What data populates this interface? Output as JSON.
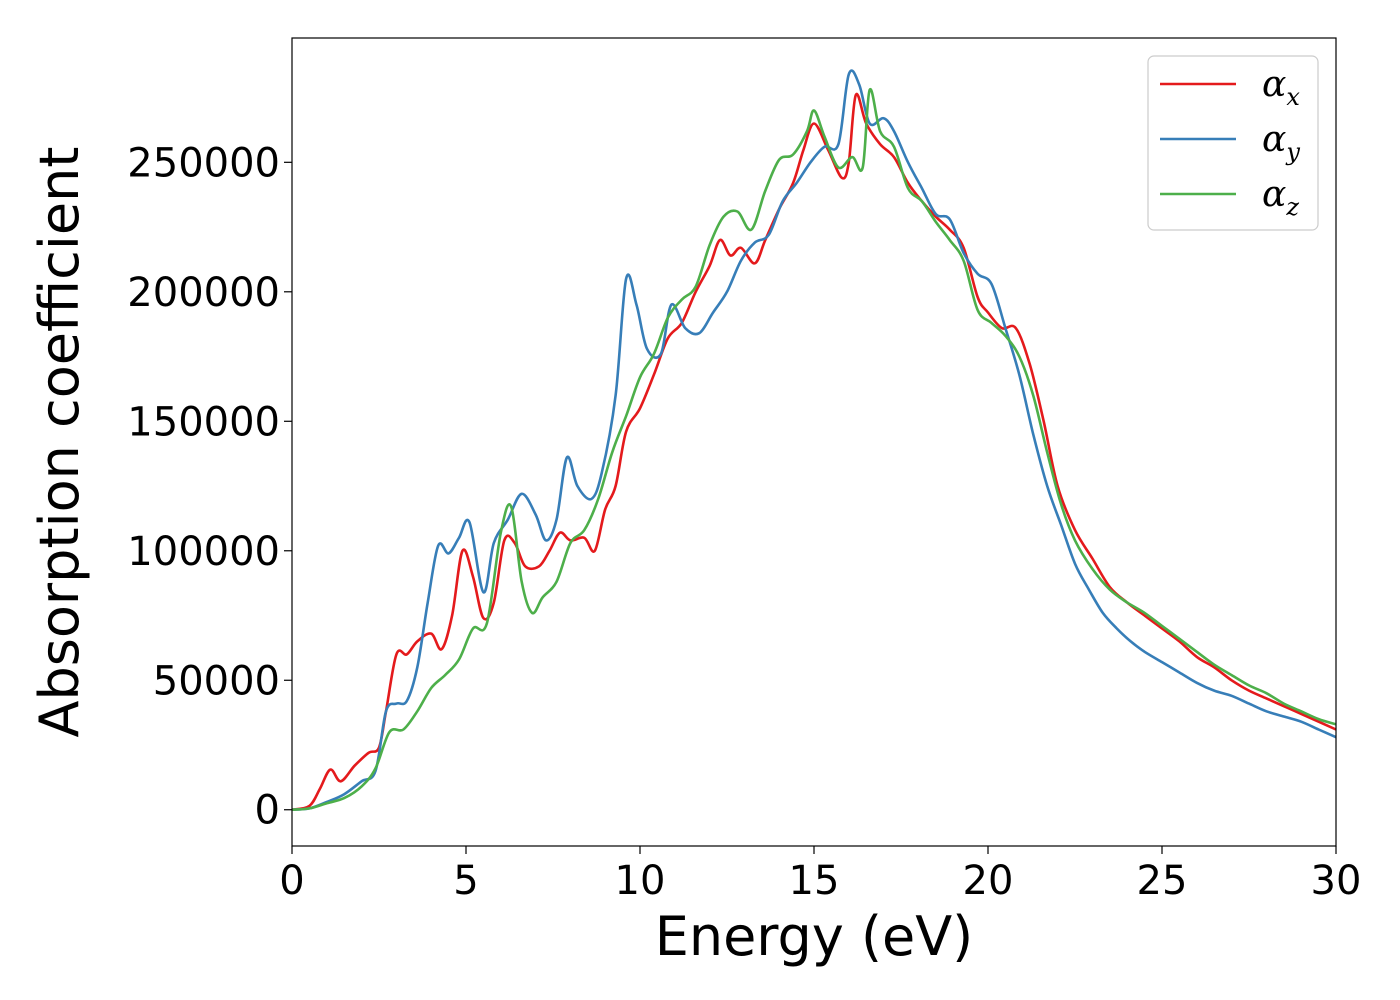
{
  "chart_data": {
    "type": "line",
    "xlabel": "Energy (eV)",
    "ylabel": "Absorption coefficient",
    "xlim": [
      0,
      30
    ],
    "ylim": [
      -14000,
      298000
    ],
    "xticks": [
      0,
      5,
      10,
      15,
      20,
      25,
      30
    ],
    "yticks": [
      0,
      50000,
      100000,
      150000,
      200000,
      250000
    ],
    "grid": false,
    "legend_position": "top-right",
    "series": [
      {
        "name": "α_x",
        "label_main": "α",
        "label_sub": "x",
        "color": "#e41a1c",
        "points": [
          [
            0,
            0
          ],
          [
            0.5,
            1500
          ],
          [
            0.8,
            8000
          ],
          [
            1.1,
            15500
          ],
          [
            1.4,
            11000
          ],
          [
            1.8,
            17000
          ],
          [
            2.2,
            22000
          ],
          [
            2.5,
            24000
          ],
          [
            2.7,
            38000
          ],
          [
            3.0,
            60000
          ],
          [
            3.3,
            60000
          ],
          [
            3.6,
            65000
          ],
          [
            4.0,
            68000
          ],
          [
            4.3,
            62000
          ],
          [
            4.6,
            75000
          ],
          [
            4.9,
            100000
          ],
          [
            5.2,
            90000
          ],
          [
            5.5,
            74000
          ],
          [
            5.8,
            80000
          ],
          [
            6.1,
            104000
          ],
          [
            6.4,
            103000
          ],
          [
            6.7,
            94000
          ],
          [
            7.1,
            94000
          ],
          [
            7.4,
            100000
          ],
          [
            7.7,
            107000
          ],
          [
            8.0,
            104000
          ],
          [
            8.4,
            105000
          ],
          [
            8.7,
            100000
          ],
          [
            9.0,
            116000
          ],
          [
            9.3,
            125000
          ],
          [
            9.6,
            146000
          ],
          [
            10.0,
            155000
          ],
          [
            10.4,
            168000
          ],
          [
            10.8,
            182000
          ],
          [
            11.2,
            188000
          ],
          [
            11.6,
            200000
          ],
          [
            12.0,
            210000
          ],
          [
            12.3,
            220000
          ],
          [
            12.6,
            214000
          ],
          [
            12.9,
            217000
          ],
          [
            13.3,
            211000
          ],
          [
            13.6,
            220000
          ],
          [
            14.0,
            232000
          ],
          [
            14.4,
            242000
          ],
          [
            14.7,
            255000
          ],
          [
            15.0,
            265000
          ],
          [
            15.4,
            255000
          ],
          [
            15.8,
            244000
          ],
          [
            16.0,
            250000
          ],
          [
            16.2,
            276000
          ],
          [
            16.5,
            265000
          ],
          [
            16.9,
            257000
          ],
          [
            17.3,
            252000
          ],
          [
            17.7,
            242000
          ],
          [
            18.1,
            235000
          ],
          [
            18.5,
            229000
          ],
          [
            18.9,
            224000
          ],
          [
            19.3,
            217000
          ],
          [
            19.7,
            198000
          ],
          [
            20.0,
            192000
          ],
          [
            20.4,
            186000
          ],
          [
            20.8,
            186000
          ],
          [
            21.2,
            172000
          ],
          [
            21.6,
            150000
          ],
          [
            22.0,
            125000
          ],
          [
            22.5,
            108000
          ],
          [
            23.0,
            97000
          ],
          [
            23.5,
            86000
          ],
          [
            24.0,
            80000
          ],
          [
            24.5,
            75000
          ],
          [
            25.0,
            70000
          ],
          [
            25.5,
            65000
          ],
          [
            26.0,
            59000
          ],
          [
            26.5,
            55000
          ],
          [
            27.0,
            50000
          ],
          [
            27.5,
            46000
          ],
          [
            28.0,
            43000
          ],
          [
            28.5,
            40000
          ],
          [
            29.0,
            37000
          ],
          [
            29.5,
            34000
          ],
          [
            30.0,
            31000
          ]
        ]
      },
      {
        "name": "α_y",
        "label_main": "α",
        "label_sub": "y",
        "color": "#377eb8",
        "points": [
          [
            0,
            0
          ],
          [
            0.5,
            500
          ],
          [
            1.0,
            3000
          ],
          [
            1.5,
            6000
          ],
          [
            2.0,
            11000
          ],
          [
            2.4,
            15000
          ],
          [
            2.7,
            38000
          ],
          [
            3.0,
            41000
          ],
          [
            3.3,
            42000
          ],
          [
            3.6,
            55000
          ],
          [
            3.9,
            80000
          ],
          [
            4.2,
            102000
          ],
          [
            4.5,
            99000
          ],
          [
            4.8,
            105000
          ],
          [
            5.1,
            111000
          ],
          [
            5.5,
            84000
          ],
          [
            5.8,
            103000
          ],
          [
            6.2,
            112000
          ],
          [
            6.6,
            122000
          ],
          [
            7.0,
            114000
          ],
          [
            7.3,
            104000
          ],
          [
            7.6,
            112000
          ],
          [
            7.9,
            136000
          ],
          [
            8.2,
            125000
          ],
          [
            8.6,
            120000
          ],
          [
            8.9,
            130000
          ],
          [
            9.3,
            160000
          ],
          [
            9.6,
            205000
          ],
          [
            9.9,
            195000
          ],
          [
            10.2,
            178000
          ],
          [
            10.6,
            176000
          ],
          [
            10.9,
            195000
          ],
          [
            11.3,
            186000
          ],
          [
            11.7,
            184000
          ],
          [
            12.1,
            192000
          ],
          [
            12.5,
            200000
          ],
          [
            12.9,
            212000
          ],
          [
            13.3,
            219000
          ],
          [
            13.7,
            222000
          ],
          [
            14.1,
            235000
          ],
          [
            14.5,
            242000
          ],
          [
            14.9,
            250000
          ],
          [
            15.3,
            256000
          ],
          [
            15.7,
            257000
          ],
          [
            16.0,
            284000
          ],
          [
            16.3,
            280000
          ],
          [
            16.6,
            265000
          ],
          [
            17.0,
            267000
          ],
          [
            17.3,
            262000
          ],
          [
            17.7,
            250000
          ],
          [
            18.1,
            240000
          ],
          [
            18.5,
            230000
          ],
          [
            18.9,
            228000
          ],
          [
            19.3,
            215000
          ],
          [
            19.7,
            207000
          ],
          [
            20.1,
            203000
          ],
          [
            20.5,
            186000
          ],
          [
            20.9,
            168000
          ],
          [
            21.3,
            145000
          ],
          [
            21.7,
            125000
          ],
          [
            22.1,
            110000
          ],
          [
            22.5,
            95000
          ],
          [
            22.9,
            85000
          ],
          [
            23.3,
            76000
          ],
          [
            23.7,
            70000
          ],
          [
            24.1,
            65000
          ],
          [
            24.5,
            61000
          ],
          [
            25.0,
            57000
          ],
          [
            25.5,
            53000
          ],
          [
            26.0,
            49000
          ],
          [
            26.5,
            46000
          ],
          [
            27.0,
            44000
          ],
          [
            27.5,
            41000
          ],
          [
            28.0,
            38000
          ],
          [
            28.5,
            36000
          ],
          [
            29.0,
            34000
          ],
          [
            29.5,
            31000
          ],
          [
            30.0,
            28000
          ]
        ]
      },
      {
        "name": "α_z",
        "label_main": "α",
        "label_sub": "z",
        "color": "#4daf4a",
        "points": [
          [
            0,
            0
          ],
          [
            0.5,
            500
          ],
          [
            1.0,
            2500
          ],
          [
            1.5,
            4500
          ],
          [
            2.0,
            9000
          ],
          [
            2.4,
            16000
          ],
          [
            2.8,
            30000
          ],
          [
            3.2,
            31000
          ],
          [
            3.6,
            38000
          ],
          [
            4.0,
            47000
          ],
          [
            4.4,
            52000
          ],
          [
            4.8,
            58000
          ],
          [
            5.2,
            70000
          ],
          [
            5.6,
            72000
          ],
          [
            6.0,
            107000
          ],
          [
            6.3,
            117000
          ],
          [
            6.6,
            88000
          ],
          [
            6.9,
            76000
          ],
          [
            7.2,
            82000
          ],
          [
            7.6,
            88000
          ],
          [
            8.0,
            103000
          ],
          [
            8.4,
            108000
          ],
          [
            8.8,
            120000
          ],
          [
            9.2,
            138000
          ],
          [
            9.6,
            152000
          ],
          [
            10.0,
            167000
          ],
          [
            10.4,
            176000
          ],
          [
            10.8,
            190000
          ],
          [
            11.2,
            197000
          ],
          [
            11.6,
            202000
          ],
          [
            12.0,
            218000
          ],
          [
            12.4,
            229000
          ],
          [
            12.8,
            231000
          ],
          [
            13.2,
            224000
          ],
          [
            13.6,
            239000
          ],
          [
            14.0,
            251000
          ],
          [
            14.4,
            253000
          ],
          [
            14.8,
            262000
          ],
          [
            15.0,
            270000
          ],
          [
            15.3,
            260000
          ],
          [
            15.7,
            248000
          ],
          [
            16.1,
            252000
          ],
          [
            16.4,
            248000
          ],
          [
            16.6,
            278000
          ],
          [
            16.9,
            262000
          ],
          [
            17.3,
            256000
          ],
          [
            17.7,
            240000
          ],
          [
            18.1,
            235000
          ],
          [
            18.5,
            227000
          ],
          [
            18.9,
            220000
          ],
          [
            19.3,
            212000
          ],
          [
            19.7,
            193000
          ],
          [
            20.1,
            188000
          ],
          [
            20.5,
            183000
          ],
          [
            20.9,
            175000
          ],
          [
            21.3,
            160000
          ],
          [
            21.7,
            138000
          ],
          [
            22.1,
            118000
          ],
          [
            22.5,
            104000
          ],
          [
            23.0,
            93000
          ],
          [
            23.5,
            85000
          ],
          [
            24.0,
            80000
          ],
          [
            24.5,
            76000
          ],
          [
            25.0,
            71000
          ],
          [
            25.5,
            66000
          ],
          [
            26.0,
            61000
          ],
          [
            26.5,
            56000
          ],
          [
            27.0,
            52000
          ],
          [
            27.5,
            48000
          ],
          [
            28.0,
            45000
          ],
          [
            28.5,
            41000
          ],
          [
            29.0,
            38000
          ],
          [
            29.5,
            35000
          ],
          [
            30.0,
            33000
          ]
        ]
      }
    ]
  }
}
